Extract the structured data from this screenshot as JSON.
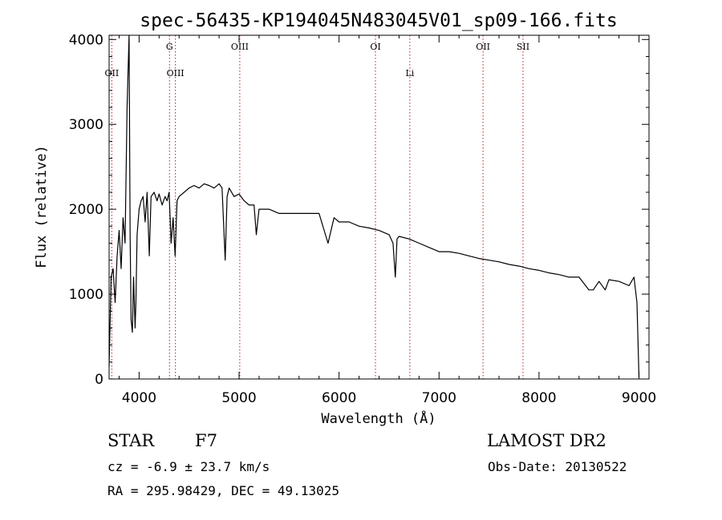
{
  "colors": {
    "spectrum": "#000000",
    "line_marker": "#b22222",
    "background": "#ffffff"
  },
  "chart_data": {
    "type": "line",
    "title": "spec-56435-KP194045N483045V01_sp09-166.fits",
    "xlabel": "Wavelength (Å)",
    "ylabel": "Flux (relative)",
    "xlim": [
      3700,
      9100
    ],
    "ylim": [
      0,
      4050
    ],
    "xticks": [
      4000,
      5000,
      6000,
      7000,
      8000,
      9000
    ],
    "yticks": [
      0,
      1000,
      2000,
      3000,
      4000
    ],
    "grid": false,
    "series": [
      {
        "x": [
          3700,
          3720,
          3740,
          3760,
          3780,
          3800,
          3820,
          3840,
          3860,
          3880,
          3900,
          3910,
          3920,
          3933,
          3945,
          3960,
          3968,
          3980,
          4000,
          4020,
          4040,
          4060,
          4080,
          4102,
          4120,
          4150,
          4180,
          4200,
          4230,
          4260,
          4280,
          4300,
          4320,
          4340,
          4360,
          4380,
          4400,
          4450,
          4500,
          4550,
          4600,
          4650,
          4700,
          4750,
          4800,
          4830,
          4861,
          4880,
          4900,
          4950,
          5000,
          5050,
          5100,
          5150,
          5172,
          5200,
          5300,
          5400,
          5500,
          5600,
          5700,
          5800,
          5890,
          5950,
          6000,
          6100,
          6200,
          6300,
          6400,
          6500,
          6540,
          6563,
          6580,
          6600,
          6700,
          6800,
          6900,
          7000,
          7100,
          7200,
          7300,
          7400,
          7500,
          7600,
          7700,
          7800,
          7900,
          8000,
          8100,
          8200,
          8300,
          8400,
          8498,
          8542,
          8600,
          8662,
          8700,
          8800,
          8900,
          8950,
          8980,
          9000
        ],
        "y": [
          150,
          1200,
          1300,
          900,
          1450,
          1750,
          1300,
          1900,
          1600,
          3200,
          4050,
          1700,
          700,
          550,
          1200,
          600,
          900,
          1700,
          2000,
          2100,
          2150,
          1850,
          2200,
          1450,
          2150,
          2200,
          2100,
          2180,
          2050,
          2150,
          2100,
          2200,
          1600,
          1900,
          1450,
          2100,
          2150,
          2200,
          2250,
          2280,
          2250,
          2300,
          2280,
          2250,
          2300,
          2250,
          1400,
          2150,
          2250,
          2150,
          2180,
          2100,
          2050,
          2050,
          1700,
          2000,
          2000,
          1950,
          1950,
          1950,
          1950,
          1950,
          1600,
          1900,
          1850,
          1850,
          1800,
          1780,
          1750,
          1700,
          1600,
          1200,
          1650,
          1680,
          1650,
          1600,
          1550,
          1500,
          1500,
          1480,
          1450,
          1420,
          1400,
          1380,
          1350,
          1330,
          1300,
          1280,
          1250,
          1230,
          1200,
          1200,
          1050,
          1050,
          1150,
          1050,
          1170,
          1150,
          1100,
          1200,
          900,
          20
        ]
      }
    ],
    "line_markers": [
      {
        "label": "OII",
        "x": 3727,
        "row": 2
      },
      {
        "label": "G",
        "x": 4304,
        "row": 1
      },
      {
        "label": "OIII",
        "x": 4363,
        "row": 2
      },
      {
        "label": "OIII",
        "x": 5007,
        "row": 1
      },
      {
        "label": "OI",
        "x": 6364,
        "row": 1
      },
      {
        "label": "Li",
        "x": 6708,
        "row": 2
      },
      {
        "label": "OII",
        "x": 7440,
        "row": 1
      },
      {
        "label": "SII",
        "x": 7840,
        "row": 1
      }
    ]
  },
  "info": {
    "object_class": "STAR",
    "subclass": "F7",
    "survey": "LAMOST DR2",
    "redshift": "cz = -6.9 ± 23.7 km/s",
    "obs_date": "Obs-Date: 20130522",
    "coords": "RA = 295.98429, DEC =  49.13025"
  }
}
